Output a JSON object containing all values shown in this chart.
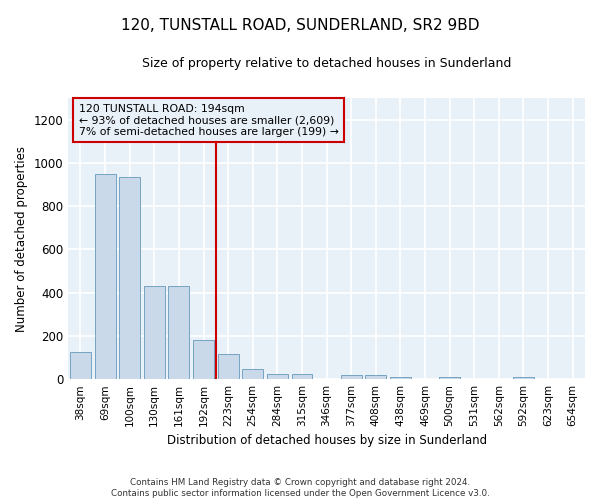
{
  "title": "120, TUNSTALL ROAD, SUNDERLAND, SR2 9BD",
  "subtitle": "Size of property relative to detached houses in Sunderland",
  "xlabel": "Distribution of detached houses by size in Sunderland",
  "ylabel": "Number of detached properties",
  "bar_labels": [
    "38sqm",
    "69sqm",
    "100sqm",
    "130sqm",
    "161sqm",
    "192sqm",
    "223sqm",
    "254sqm",
    "284sqm",
    "315sqm",
    "346sqm",
    "377sqm",
    "408sqm",
    "438sqm",
    "469sqm",
    "500sqm",
    "531sqm",
    "562sqm",
    "592sqm",
    "623sqm",
    "654sqm"
  ],
  "bar_values": [
    125,
    950,
    935,
    430,
    430,
    182,
    115,
    45,
    22,
    22,
    0,
    18,
    18,
    10,
    0,
    10,
    0,
    0,
    10,
    0,
    0
  ],
  "bar_color": "#c9d9ea",
  "bar_edge_color": "#6699bb",
  "vline_x_index": 5.5,
  "vline_color": "#cc0000",
  "annotation_text": "120 TUNSTALL ROAD: 194sqm\n← 93% of detached houses are smaller (2,609)\n7% of semi-detached houses are larger (199) →",
  "annotation_box_color": "#cc0000",
  "ylim": [
    0,
    1300
  ],
  "yticks": [
    0,
    200,
    400,
    600,
    800,
    1000,
    1200
  ],
  "plot_bg_color": "#e8f0f8",
  "fig_bg_color": "#ffffff",
  "grid_color": "#ffffff",
  "footer": "Contains HM Land Registry data © Crown copyright and database right 2024.\nContains public sector information licensed under the Open Government Licence v3.0."
}
